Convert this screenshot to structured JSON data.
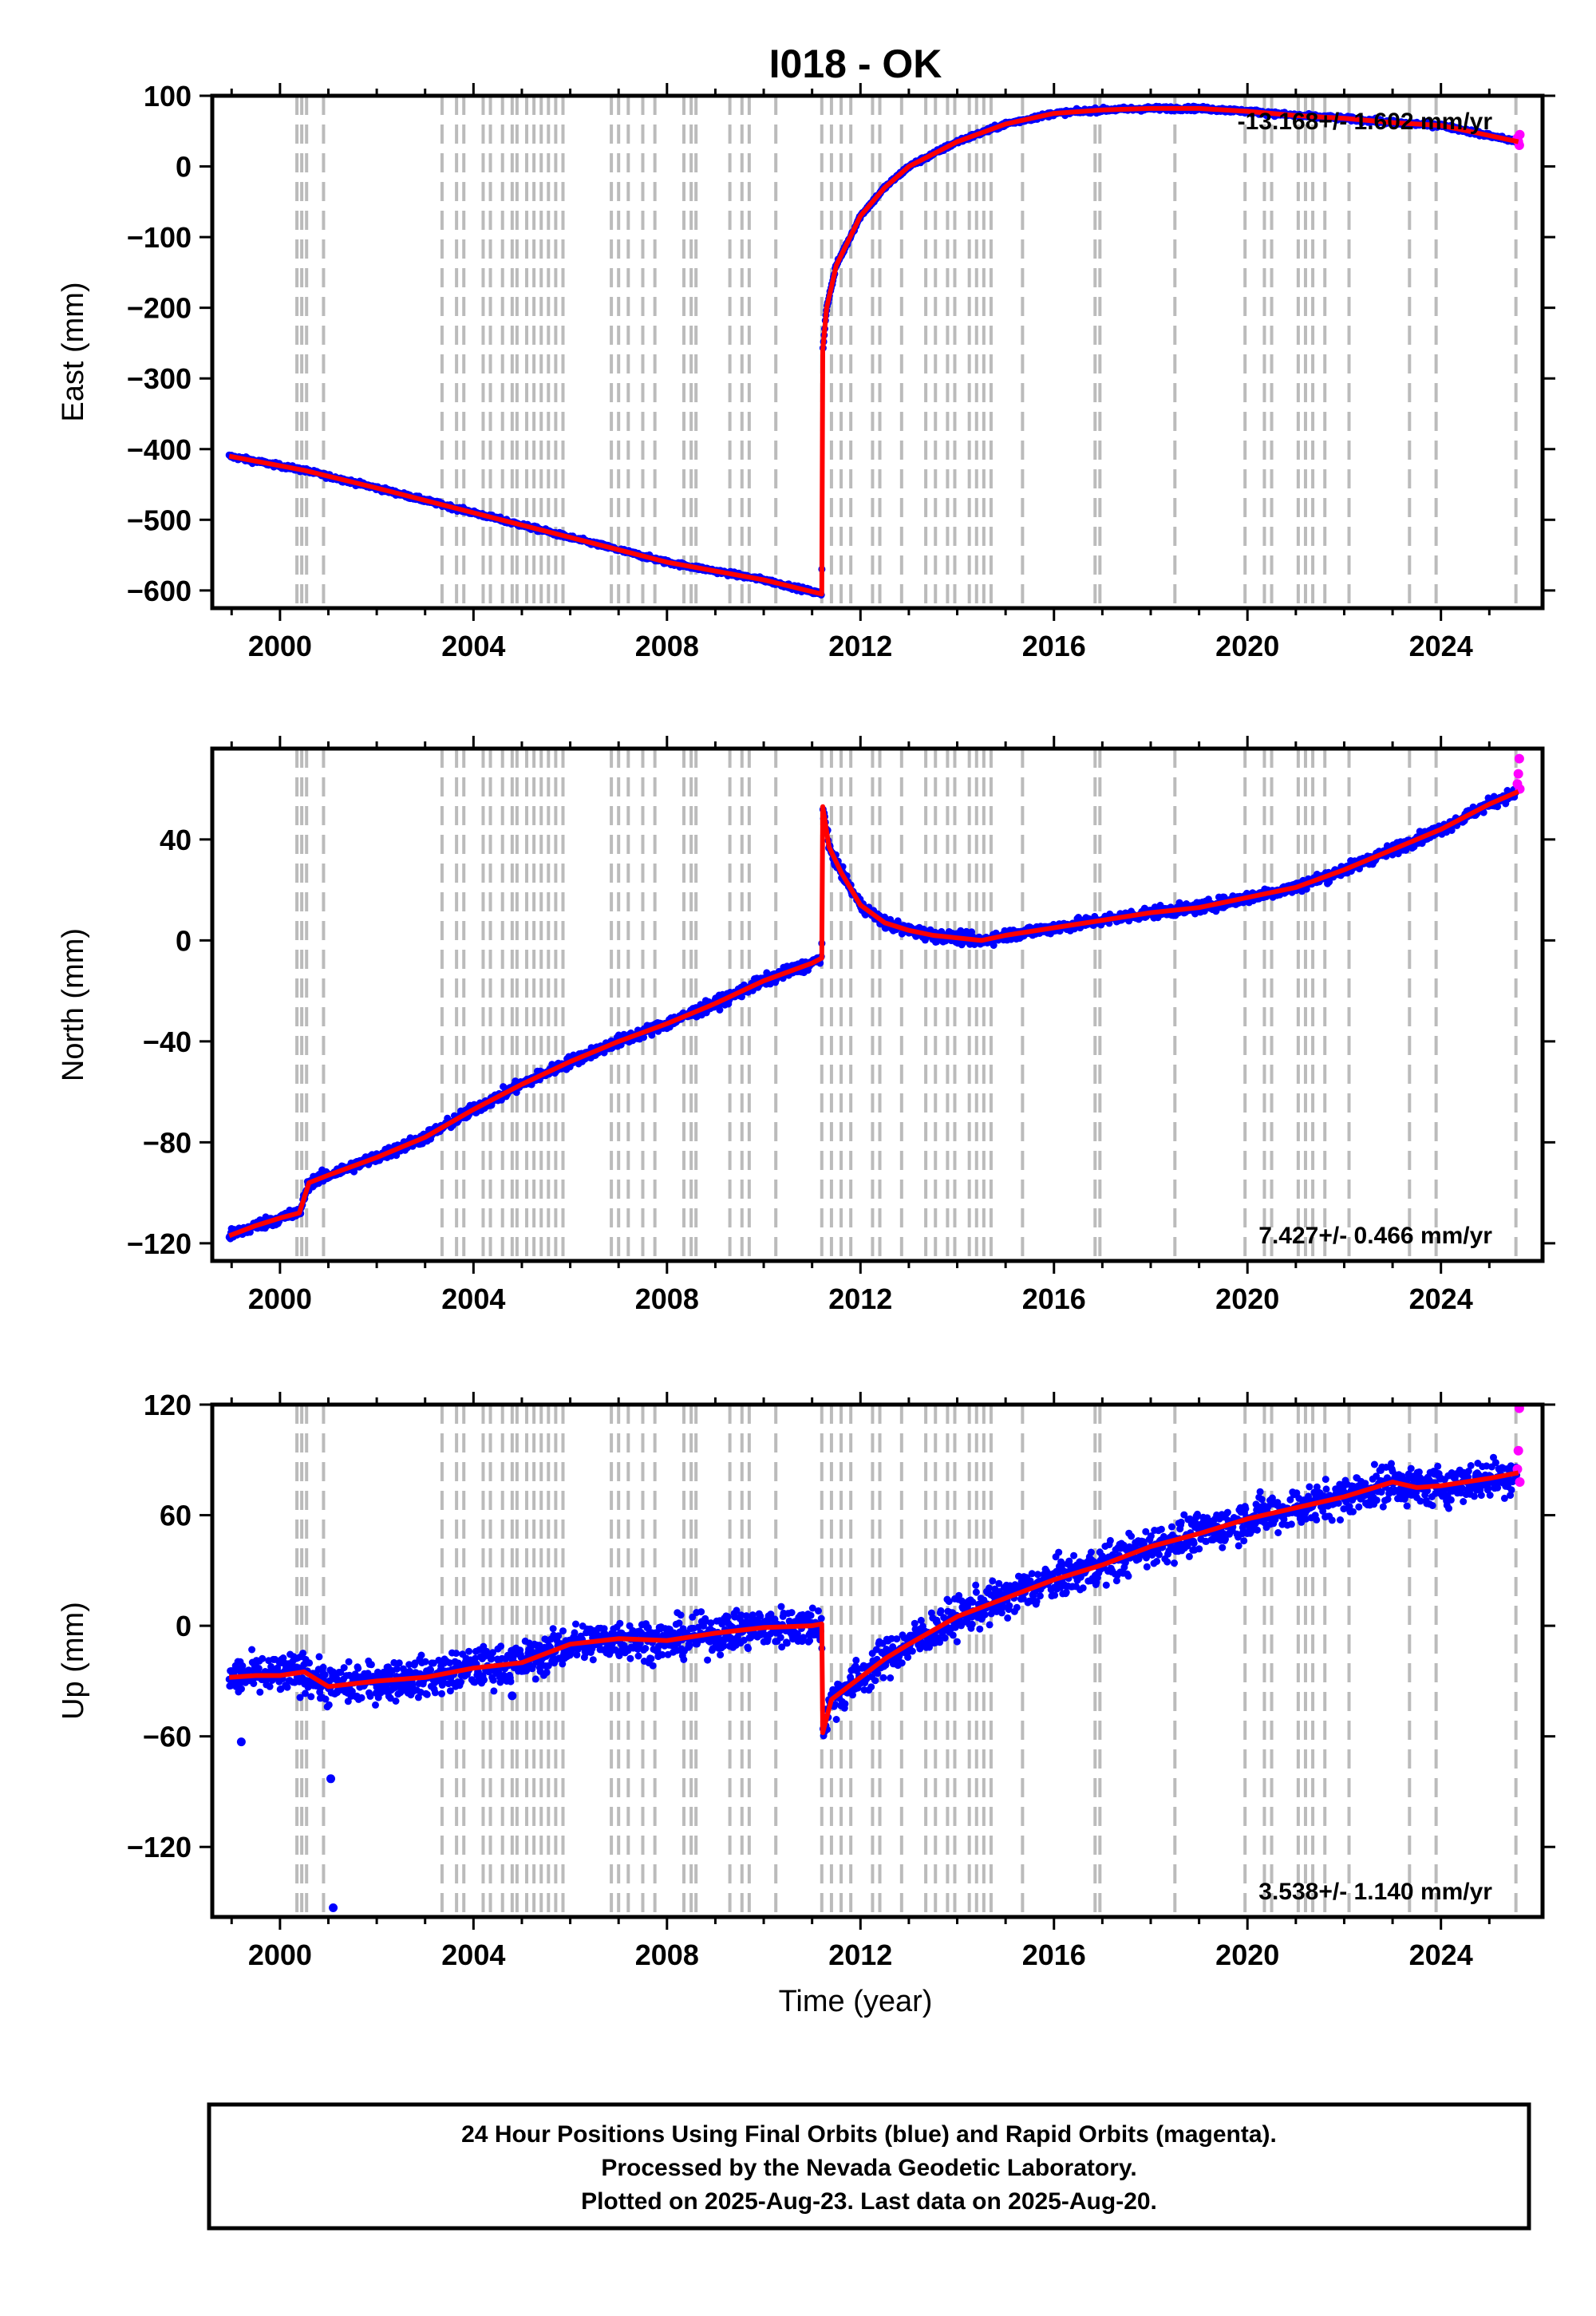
{
  "colors": {
    "final_orbits": "#0000ff",
    "rapid_orbits": "#ff00ff",
    "model": "#ff0000",
    "event_lines": "#bbbbbb"
  },
  "chart_data": {
    "type": "scatter",
    "title": "I018 - OK",
    "xlabel": "Time (year)",
    "xlim": [
      1998.6,
      2026.1
    ],
    "x_ticks": [
      2000,
      2004,
      2008,
      2012,
      2016,
      2020,
      2024
    ],
    "event_lines": [
      2000.35,
      2000.45,
      2000.55,
      2000.9,
      2003.35,
      2003.65,
      2003.8,
      2004.2,
      2004.35,
      2004.6,
      2004.8,
      2004.9,
      2005.1,
      2005.25,
      2005.4,
      2005.55,
      2005.7,
      2005.85,
      2006.85,
      2007.0,
      2007.2,
      2007.5,
      2007.75,
      2008.35,
      2008.5,
      2008.6,
      2009.3,
      2009.55,
      2009.7,
      2010.25,
      2011.2,
      2011.4,
      2011.6,
      2011.8,
      2012.25,
      2012.4,
      2012.85,
      2013.35,
      2013.55,
      2013.8,
      2013.95,
      2014.25,
      2014.4,
      2014.55,
      2014.7,
      2015.35,
      2016.85,
      2016.95,
      2018.5,
      2019.95,
      2020.35,
      2020.5,
      2021.05,
      2021.2,
      2021.35,
      2021.6,
      2022.1,
      2023.35,
      2023.9,
      2025.55
    ],
    "panels": [
      {
        "name": "east",
        "ylabel": "East (mm)",
        "ylim": [
          -625,
          100
        ],
        "y_ticks": [
          100,
          0,
          -100,
          -200,
          -300,
          -400,
          -500,
          -600
        ],
        "rate_text": "-13.168+/- 1.602 mm/yr",
        "rate_position": "top-right",
        "model": [
          [
            1998.95,
            -410
          ],
          [
            2000.5,
            -430
          ],
          [
            2002,
            -455
          ],
          [
            2004,
            -490
          ],
          [
            2006,
            -525
          ],
          [
            2008,
            -560
          ],
          [
            2010,
            -585
          ],
          [
            2011.2,
            -605
          ],
          [
            2011.22,
            -260
          ],
          [
            2011.3,
            -200
          ],
          [
            2011.5,
            -140
          ],
          [
            2012,
            -70
          ],
          [
            2012.5,
            -30
          ],
          [
            2013,
            0
          ],
          [
            2014,
            35
          ],
          [
            2015,
            60
          ],
          [
            2016,
            75
          ],
          [
            2017,
            80
          ],
          [
            2018,
            82
          ],
          [
            2019,
            82
          ],
          [
            2020,
            78
          ],
          [
            2021,
            72
          ],
          [
            2022,
            68
          ],
          [
            2023,
            62
          ],
          [
            2024,
            58
          ],
          [
            2024.7,
            48
          ],
          [
            2025.6,
            35
          ]
        ],
        "rapid_points": [
          [
            2025.58,
            40
          ],
          [
            2025.6,
            35
          ],
          [
            2025.62,
            30
          ],
          [
            2025.63,
            45
          ]
        ],
        "outliers": []
      },
      {
        "name": "north",
        "ylabel": "North (mm)",
        "ylim": [
          -127,
          76
        ],
        "y_ticks": [
          40,
          0,
          -40,
          -80,
          -120
        ],
        "rate_text": "7.427+/- 0.466 mm/yr",
        "rate_position": "bottom-right",
        "model": [
          [
            1998.95,
            -117
          ],
          [
            1999.5,
            -113
          ],
          [
            2000,
            -110
          ],
          [
            2000.4,
            -108
          ],
          [
            2000.6,
            -96
          ],
          [
            2001,
            -93
          ],
          [
            2002,
            -86
          ],
          [
            2003,
            -78
          ],
          [
            2004,
            -67
          ],
          [
            2005,
            -57
          ],
          [
            2006,
            -48
          ],
          [
            2007,
            -40
          ],
          [
            2008,
            -33
          ],
          [
            2009,
            -25
          ],
          [
            2010,
            -16
          ],
          [
            2011,
            -9
          ],
          [
            2011.2,
            -7
          ],
          [
            2011.22,
            53
          ],
          [
            2011.35,
            37
          ],
          [
            2011.6,
            27
          ],
          [
            2012,
            14
          ],
          [
            2012.5,
            7
          ],
          [
            2013,
            4
          ],
          [
            2013.5,
            2
          ],
          [
            2014,
            1
          ],
          [
            2014.5,
            0
          ],
          [
            2015,
            2
          ],
          [
            2016,
            5
          ],
          [
            2017,
            8
          ],
          [
            2018,
            11
          ],
          [
            2019,
            13
          ],
          [
            2020,
            17
          ],
          [
            2021,
            21
          ],
          [
            2022,
            28
          ],
          [
            2023,
            36
          ],
          [
            2024,
            44
          ],
          [
            2025,
            54
          ],
          [
            2025.6,
            59
          ]
        ],
        "rapid_points": [
          [
            2025.58,
            62
          ],
          [
            2025.6,
            66
          ],
          [
            2025.62,
            72
          ],
          [
            2025.63,
            60
          ]
        ],
        "outliers": []
      },
      {
        "name": "up",
        "ylabel": "Up (mm)",
        "ylim": [
          -158,
          120
        ],
        "y_ticks": [
          120,
          60,
          0,
          -60,
          -120
        ],
        "rate_text": "3.538+/- 1.140 mm/yr",
        "rate_position": "bottom-right",
        "model": [
          [
            1998.95,
            -28
          ],
          [
            1999.5,
            -27
          ],
          [
            2000,
            -27
          ],
          [
            2000.5,
            -25
          ],
          [
            2001,
            -33
          ],
          [
            2002,
            -30
          ],
          [
            2003,
            -28
          ],
          [
            2004,
            -23
          ],
          [
            2005,
            -20
          ],
          [
            2006,
            -10
          ],
          [
            2007,
            -7
          ],
          [
            2008,
            -8
          ],
          [
            2009,
            -4
          ],
          [
            2010,
            -1
          ],
          [
            2011,
            0
          ],
          [
            2011.2,
            1
          ],
          [
            2011.22,
            -58
          ],
          [
            2011.4,
            -40
          ],
          [
            2012,
            -28
          ],
          [
            2012.5,
            -18
          ],
          [
            2013,
            -10
          ],
          [
            2014,
            5
          ],
          [
            2015,
            15
          ],
          [
            2016,
            25
          ],
          [
            2017,
            33
          ],
          [
            2018,
            43
          ],
          [
            2019,
            50
          ],
          [
            2020,
            58
          ],
          [
            2021,
            64
          ],
          [
            2022,
            70
          ],
          [
            2023,
            78
          ],
          [
            2023.5,
            75
          ],
          [
            2024,
            76
          ],
          [
            2024.5,
            78
          ],
          [
            2025,
            80
          ],
          [
            2025.6,
            83
          ]
        ],
        "rapid_points": [
          [
            2025.58,
            85
          ],
          [
            2025.6,
            95
          ],
          [
            2025.62,
            118
          ],
          [
            2025.63,
            78
          ]
        ],
        "outliers": [
          [
            1999.2,
            -63
          ],
          [
            2001.05,
            -83
          ],
          [
            2001.1,
            -153
          ],
          [
            2003.4,
            -25
          ],
          [
            2004.8,
            -38
          ]
        ]
      }
    ]
  },
  "footer": {
    "line1": "24 Hour Positions Using Final Orbits (blue) and Rapid Orbits (magenta).",
    "line2": "Processed by the Nevada Geodetic Laboratory.",
    "line3": "Plotted on 2025-Aug-23. Last data on 2025-Aug-20."
  }
}
